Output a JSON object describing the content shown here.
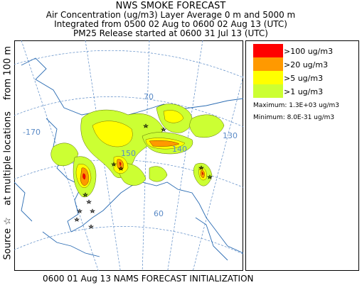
{
  "title": {
    "line1": "NWS SMOKE FORECAST",
    "line2": "Air Concentration (ug/m3) Layer Average    0 m and  5000 m",
    "line3": "Integrated from 0500 02 Aug to 0600 02 Aug 13 (UTC)",
    "line4": "PM25 Release started at 0600 31 Jul 13 (UTC)"
  },
  "side_label": {
    "part1": "Source ☆",
    "part2": "at multiple locations",
    "part3": "from   100 m"
  },
  "footer": "0600 01 Aug 13 NAMS FORECAST INITIALIZATION",
  "legend": {
    "items": [
      {
        "label": ">100 ug/m3",
        "color": "#ff0000"
      },
      {
        "label": ">20 ug/m3",
        "color": "#ff9900"
      },
      {
        "label": ">5 ug/m3",
        "color": "#ffff00"
      },
      {
        "label": ">1 ug/m3",
        "color": "#ccff33"
      }
    ],
    "maximum": "Maximum: 1.3E+03 ug/m3",
    "minimum": "Minimum: 8.0E-31 ug/m3"
  },
  "map_labels": {
    "lon_170": "-170",
    "lat_70": "70",
    "lon_130": "130",
    "lon_140": "140",
    "lon_150": "150",
    "lat_60": "60"
  }
}
